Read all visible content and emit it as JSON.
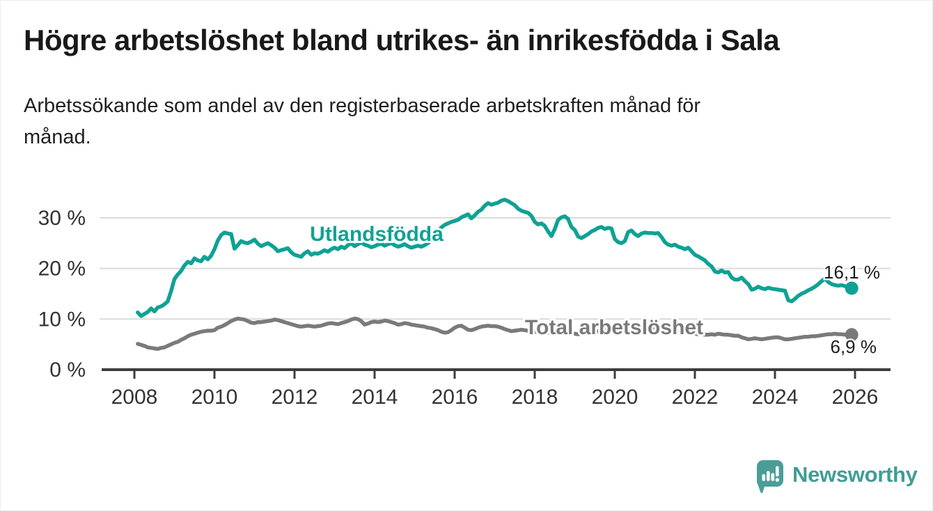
{
  "header": {
    "title": "Högre arbetslöshet bland utrikes- än inrikesfödda i Sala",
    "subtitle_line1": "Arbetssökande som andel av den registerbaserade arbetskraften månad för",
    "subtitle_line2": "månad."
  },
  "chart_data": {
    "type": "line",
    "title": "Högre arbetslöshet bland utrikes- än inrikesfödda i Sala",
    "subtitle": "Arbetssökande som andel av den registerbaserade arbetskraften månad för månad.",
    "x_unit": "year (monthly data)",
    "x_range": [
      2008,
      2026
    ],
    "x_ticks": [
      2008,
      2010,
      2012,
      2014,
      2016,
      2018,
      2020,
      2022,
      2024,
      2026
    ],
    "y_ticks": [
      {
        "value": 0,
        "label": "0 %"
      },
      {
        "value": 10,
        "label": "10 %"
      },
      {
        "value": 20,
        "label": "20 %"
      },
      {
        "value": 30,
        "label": "30 %"
      }
    ],
    "ylim": [
      0,
      35
    ],
    "grid": "horizontal",
    "legend_position": "inline-labels",
    "annotation_color": "#1d1d1d",
    "series": [
      {
        "name": "Utlandsfödda",
        "color": "#0fa294",
        "start_year": 2008,
        "start_month": 1,
        "end_label": "16,1 %",
        "last_value": 16.1,
        "monthly_values": [
          11.3,
          10.6,
          11.0,
          11.4,
          12.1,
          11.5,
          12.3,
          12.5,
          12.9,
          13.5,
          15.5,
          17.9,
          18.8,
          19.5,
          20.6,
          21.3,
          21.0,
          22.0,
          21.6,
          21.4,
          22.3,
          21.8,
          22.5,
          23.8,
          25.5,
          26.6,
          27.1,
          26.9,
          26.8,
          23.9,
          24.6,
          25.4,
          25.1,
          25.0,
          25.3,
          25.7,
          24.9,
          24.4,
          24.7,
          25.0,
          24.6,
          24.1,
          23.4,
          23.6,
          23.8,
          24.0,
          23.2,
          22.7,
          22.5,
          22.3,
          23.0,
          23.4,
          22.7,
          23.0,
          22.9,
          23.2,
          23.6,
          23.3,
          23.8,
          24.1,
          23.8,
          24.3,
          24.0,
          24.6,
          25.0,
          24.4,
          24.8,
          25.1,
          24.7,
          24.5,
          24.2,
          24.4,
          24.7,
          24.9,
          24.5,
          24.8,
          25.0,
          24.6,
          24.3,
          24.5,
          24.8,
          24.4,
          24.1,
          24.3,
          24.5,
          24.3,
          24.6,
          25.0,
          25.6,
          26.4,
          27.3,
          28.1,
          28.6,
          28.9,
          29.2,
          29.4,
          29.6,
          30.1,
          30.4,
          30.7,
          29.9,
          30.5,
          31.2,
          31.6,
          32.4,
          32.9,
          32.6,
          32.8,
          33.0,
          33.4,
          33.6,
          33.3,
          32.9,
          32.5,
          31.8,
          31.4,
          31.2,
          31.0,
          30.4,
          29.2,
          28.7,
          28.9,
          28.4,
          27.3,
          26.4,
          27.8,
          29.6,
          30.1,
          30.3,
          29.8,
          28.2,
          27.6,
          26.3,
          26.0,
          26.4,
          26.8,
          27.3,
          27.6,
          28.0,
          28.2,
          27.8,
          28.0,
          27.9,
          25.8,
          25.2,
          25.0,
          25.4,
          27.2,
          27.5,
          26.8,
          26.4,
          26.9,
          27.1,
          27.0,
          27.0,
          26.9,
          27.0,
          26.2,
          25.2,
          24.7,
          24.5,
          24.7,
          24.3,
          24.1,
          23.8,
          24.1,
          23.4,
          22.7,
          22.4,
          22.0,
          21.6,
          20.9,
          20.4,
          19.4,
          19.2,
          19.6,
          19.2,
          19.3,
          18.2,
          17.8,
          17.8,
          18.2,
          17.5,
          16.9,
          15.8,
          16.0,
          16.4,
          16.1,
          15.9,
          16.2,
          16.0,
          15.9,
          15.8,
          15.7,
          15.6,
          13.7,
          13.5,
          14.0,
          14.6,
          15.0,
          15.3,
          15.7,
          16.0,
          16.4,
          16.9,
          17.5,
          18.0,
          17.3,
          16.9,
          16.7,
          16.6,
          16.7,
          16.5,
          16.3,
          16.1
        ]
      },
      {
        "name": "Total arbetslöshet",
        "color": "#7a7a7c",
        "start_year": 2008,
        "start_month": 1,
        "end_label": "6,9 %",
        "last_value": 6.9,
        "monthly_values": [
          5.1,
          4.9,
          4.7,
          4.4,
          4.3,
          4.2,
          4.1,
          4.3,
          4.4,
          4.7,
          5.0,
          5.3,
          5.5,
          5.9,
          6.2,
          6.6,
          6.9,
          7.1,
          7.3,
          7.5,
          7.6,
          7.7,
          7.7,
          7.8,
          8.3,
          8.5,
          8.8,
          9.2,
          9.6,
          9.9,
          10.1,
          10.0,
          9.9,
          9.6,
          9.3,
          9.2,
          9.4,
          9.4,
          9.5,
          9.6,
          9.7,
          9.9,
          9.8,
          9.6,
          9.4,
          9.2,
          9.0,
          8.8,
          8.6,
          8.5,
          8.6,
          8.7,
          8.6,
          8.5,
          8.6,
          8.7,
          8.9,
          9.1,
          9.2,
          9.1,
          9.0,
          9.2,
          9.4,
          9.6,
          9.9,
          10.1,
          10.0,
          9.6,
          8.9,
          9.1,
          9.4,
          9.5,
          9.4,
          9.5,
          9.7,
          9.6,
          9.4,
          9.2,
          8.9,
          9.0,
          9.2,
          9.1,
          8.9,
          8.8,
          8.7,
          8.6,
          8.5,
          8.3,
          8.2,
          8.0,
          7.8,
          7.5,
          7.3,
          7.4,
          7.8,
          8.3,
          8.6,
          8.7,
          8.3,
          7.9,
          7.8,
          8.0,
          8.3,
          8.5,
          8.6,
          8.7,
          8.6,
          8.6,
          8.5,
          8.3,
          8.0,
          7.8,
          7.6,
          7.7,
          7.8,
          7.9,
          7.8,
          7.7,
          7.6,
          7.5,
          7.4,
          7.3,
          7.2,
          7.3,
          7.4,
          7.5,
          7.6,
          7.5,
          7.4,
          7.3,
          7.2,
          7.1,
          7.0,
          7.1,
          7.2,
          7.3,
          7.4,
          7.5,
          7.6,
          7.7,
          7.8,
          7.9,
          7.9,
          7.8,
          7.9,
          8.0,
          8.2,
          8.5,
          8.6,
          8.7,
          8.8,
          8.7,
          8.6,
          8.5,
          8.4,
          8.3,
          8.2,
          8.1,
          8.0,
          7.9,
          7.8,
          7.7,
          7.6,
          7.5,
          7.4,
          7.3,
          7.2,
          7.1,
          7.0,
          7.0,
          6.9,
          6.9,
          7.0,
          6.9,
          7.1,
          7.0,
          6.9,
          6.9,
          6.8,
          6.7,
          6.7,
          6.4,
          6.2,
          6.0,
          6.1,
          6.2,
          6.1,
          6.0,
          6.1,
          6.2,
          6.3,
          6.4,
          6.4,
          6.2,
          6.0,
          6.0,
          6.1,
          6.2,
          6.3,
          6.4,
          6.5,
          6.5,
          6.6,
          6.6,
          6.7,
          6.8,
          6.9,
          7.0,
          7.0,
          7.1,
          7.0,
          7.0,
          6.9,
          6.9,
          6.9
        ]
      }
    ]
  },
  "footer": {
    "brand": "Newsworthy",
    "brand_color": "#3f9d95",
    "logo_icon": "bar-chart-speech-bubble"
  }
}
